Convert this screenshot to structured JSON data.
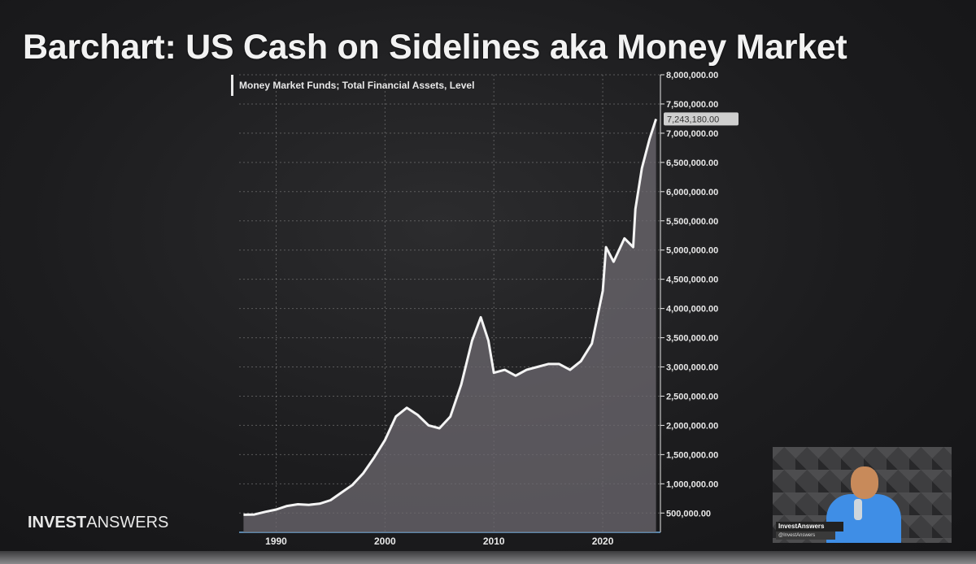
{
  "title": "Barchart: US Cash on Sidelines aka Money Market",
  "brand": {
    "bold": "INVEST",
    "light": "ANSWERS"
  },
  "webcam": {
    "name": "InvestAnswers",
    "handle": "@InvestAnswers"
  },
  "colors": {
    "line": "#f4f4f4",
    "fill": "#6e6a70",
    "grid": "#8a8a8a",
    "text": "#e8e8e8",
    "value_box": "#cfcfcf"
  },
  "chart_data": {
    "type": "area",
    "series": [
      {
        "name": "Money Market Funds; Total Financial Assets, Level",
        "points": [
          [
            1987.0,
            470000
          ],
          [
            1988.0,
            475000
          ],
          [
            1989.0,
            520000
          ],
          [
            1990.0,
            560000
          ],
          [
            1991.0,
            620000
          ],
          [
            1992.0,
            650000
          ],
          [
            1993.0,
            640000
          ],
          [
            1994.0,
            660000
          ],
          [
            1995.0,
            720000
          ],
          [
            1996.0,
            850000
          ],
          [
            1997.0,
            980000
          ],
          [
            1998.0,
            1180000
          ],
          [
            1999.0,
            1450000
          ],
          [
            2000.0,
            1750000
          ],
          [
            2001.0,
            2150000
          ],
          [
            2002.0,
            2300000
          ],
          [
            2003.0,
            2180000
          ],
          [
            2004.0,
            2000000
          ],
          [
            2005.0,
            1950000
          ],
          [
            2006.0,
            2150000
          ],
          [
            2007.0,
            2700000
          ],
          [
            2008.0,
            3450000
          ],
          [
            2008.8,
            3850000
          ],
          [
            2009.5,
            3450000
          ],
          [
            2010.0,
            2900000
          ],
          [
            2011.0,
            2950000
          ],
          [
            2012.0,
            2850000
          ],
          [
            2013.0,
            2950000
          ],
          [
            2014.0,
            3000000
          ],
          [
            2015.0,
            3050000
          ],
          [
            2016.0,
            3050000
          ],
          [
            2017.0,
            2950000
          ],
          [
            2018.0,
            3100000
          ],
          [
            2019.0,
            3400000
          ],
          [
            2020.0,
            4300000
          ],
          [
            2020.3,
            5050000
          ],
          [
            2021.0,
            4800000
          ],
          [
            2022.0,
            5200000
          ],
          [
            2022.8,
            5050000
          ],
          [
            2023.0,
            5700000
          ],
          [
            2023.6,
            6400000
          ],
          [
            2024.3,
            6900000
          ],
          [
            2024.9,
            7243180
          ]
        ],
        "last_value_label": "7,243,180.00"
      }
    ],
    "x_ticks": [
      1990,
      2000,
      2010,
      2020
    ],
    "y_ticks": [
      "500,000.00",
      "1,000,000.00",
      "1,500,000.00",
      "2,000,000.00",
      "2,500,000.00",
      "3,000,000.00",
      "3,500,000.00",
      "4,000,000.00",
      "4,500,000.00",
      "5,000,000.00",
      "5,500,000.00",
      "6,000,000.00",
      "6,500,000.00",
      "7,000,000.00",
      "7,500,000.00",
      "8,000,000.00"
    ],
    "xlim": [
      1986.6,
      2025.3
    ],
    "ylim": [
      170000,
      8000000
    ],
    "grid": true,
    "axis_position": "right"
  }
}
